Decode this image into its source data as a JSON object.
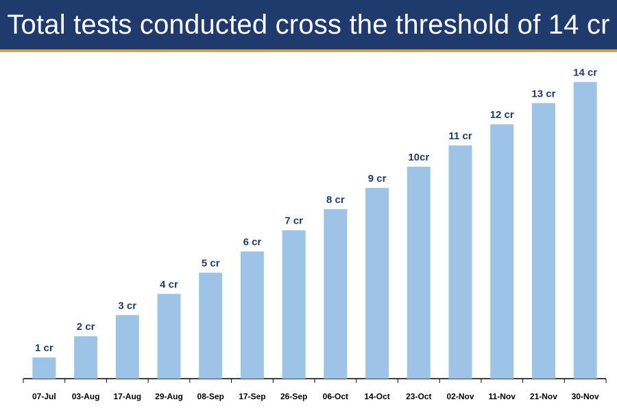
{
  "header": {
    "title": "Total tests conducted cross the threshold of 14 cr"
  },
  "colors": {
    "banner_bg": "#1f3b6e",
    "banner_accent": "#d8a23a",
    "bar_fill": "#9dc3e6",
    "label_text": "#1f3b6e"
  },
  "chart_data": {
    "type": "bar",
    "title": "Total tests conducted cross the threshold of 14 cr",
    "xlabel": "",
    "ylabel": "",
    "grid": false,
    "legend": "none",
    "ylim": [
      0,
      14.5
    ],
    "categories": [
      "07-Jul",
      "03-Aug",
      "17-Aug",
      "29-Aug",
      "08-Sep",
      "17-Sep",
      "26-Sep",
      "06-Oct",
      "14-Oct",
      "23-Oct",
      "02-Nov",
      "11-Nov",
      "21-Nov",
      "30-Nov"
    ],
    "values": [
      1,
      2,
      3,
      4,
      5,
      6,
      7,
      8,
      9,
      10,
      11,
      12,
      13,
      14
    ],
    "data_labels": [
      "1 cr",
      "2 cr",
      "3 cr",
      "4 cr",
      "5 cr",
      "6 cr",
      "7 cr",
      "8 cr",
      "9 cr",
      "10cr",
      "11 cr",
      "12 cr",
      "13 cr",
      "14 cr"
    ]
  }
}
